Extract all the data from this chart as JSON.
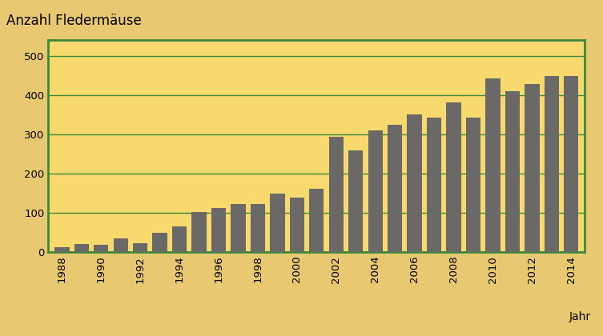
{
  "years": [
    1988,
    1989,
    1990,
    1991,
    1992,
    1993,
    1994,
    1995,
    1996,
    1997,
    1998,
    1999,
    2000,
    2001,
    2002,
    2003,
    2004,
    2005,
    2006,
    2007,
    2008,
    2009,
    2010,
    2011,
    2012,
    2013,
    2014
  ],
  "values": [
    13,
    20,
    18,
    35,
    22,
    50,
    65,
    102,
    113,
    122,
    122,
    148,
    138,
    162,
    293,
    260,
    310,
    325,
    350,
    342,
    382,
    342,
    443,
    410,
    428,
    448,
    448
  ],
  "bar_color": "#6b6868",
  "bg_color": "#f7d96d",
  "border_color": "#3a8a3a",
  "outer_bg": "#e8c870",
  "title": "Anzahl Fledermäuse",
  "xlabel": "Jahr",
  "ylim": [
    0,
    540
  ],
  "yticks": [
    0,
    100,
    200,
    300,
    400,
    500
  ],
  "title_fontsize": 12,
  "axis_fontsize": 10,
  "tick_fontsize": 9.5
}
